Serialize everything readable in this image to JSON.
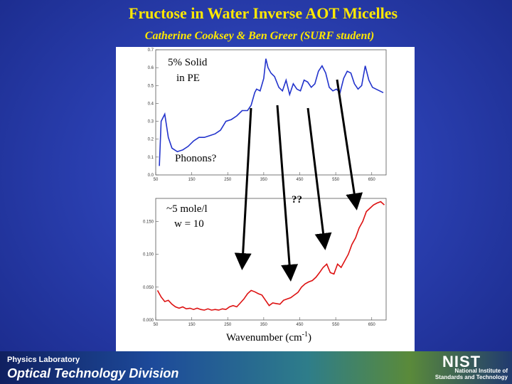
{
  "slide": {
    "title": "Fructose in Water Inverse AOT Micelles",
    "subtitle": "Catherine Cooksey & Ben Greer (SURF student)"
  },
  "footer": {
    "lab_name": "Physics Laboratory",
    "division": "Optical Technology Division",
    "logo": "NIST",
    "org_line1": "National Institute of",
    "org_line2": "Standards and Technology"
  },
  "annotations": {
    "top_label_1": "5% Solid",
    "top_label_2": "in PE",
    "phonons": "Phonons?",
    "bottom_label_1": "~5 mole/l",
    "bottom_label_2": "w = 10",
    "question": "??",
    "xlabel_main": "Wavenumber (cm",
    "xlabel_sup": "-1",
    "xlabel_end": ")"
  },
  "colors": {
    "title": "#ffe800",
    "top_series": "#2233cc",
    "bottom_series": "#dd1111",
    "arrow": "#000000"
  },
  "chart_data": [
    {
      "type": "line",
      "title": "",
      "xlabel": "",
      "ylabel": "",
      "xlim": [
        50,
        690
      ],
      "ylim": [
        0.0,
        0.7
      ],
      "xticks": [
        "50",
        "150",
        "250",
        "350",
        "450",
        "550",
        "650"
      ],
      "yticks": [
        "0.0",
        "0.1",
        "0.2",
        "0.3",
        "0.4",
        "0.5",
        "0.6",
        "0.7"
      ],
      "series": [
        {
          "x": [
            60,
            65,
            75,
            85,
            95,
            110,
            125,
            140,
            155,
            170,
            185,
            200,
            215,
            230,
            245,
            260,
            275,
            290,
            305,
            315,
            325,
            330,
            340,
            350,
            356,
            362,
            370,
            380,
            392,
            402,
            412,
            422,
            432,
            442,
            452,
            462,
            472,
            482,
            492,
            502,
            512,
            522,
            532,
            542,
            552,
            562,
            572,
            582,
            592,
            602,
            612,
            622,
            632,
            642,
            652,
            662,
            672,
            682
          ],
          "y": [
            0.05,
            0.3,
            0.34,
            0.21,
            0.15,
            0.13,
            0.14,
            0.16,
            0.19,
            0.21,
            0.21,
            0.22,
            0.23,
            0.25,
            0.3,
            0.31,
            0.33,
            0.36,
            0.36,
            0.39,
            0.46,
            0.48,
            0.47,
            0.54,
            0.65,
            0.6,
            0.57,
            0.55,
            0.49,
            0.47,
            0.53,
            0.45,
            0.51,
            0.48,
            0.47,
            0.53,
            0.52,
            0.49,
            0.51,
            0.58,
            0.61,
            0.57,
            0.49,
            0.47,
            0.48,
            0.46,
            0.54,
            0.58,
            0.57,
            0.51,
            0.48,
            0.5,
            0.61,
            0.53,
            0.49,
            0.48,
            0.47,
            0.46
          ]
        }
      ]
    },
    {
      "type": "line",
      "title": "",
      "xlabel": "Wavenumber (cm-1)",
      "ylabel": "",
      "xlim": [
        50,
        690
      ],
      "ylim": [
        0.0,
        0.185
      ],
      "xticks": [
        "50",
        "150",
        "250",
        "350",
        "450",
        "550",
        "650"
      ],
      "yticks": [
        "0.000",
        "0.050",
        "0.100",
        "0.150"
      ],
      "series": [
        {
          "x": [
            55,
            65,
            75,
            85,
            95,
            105,
            115,
            125,
            135,
            145,
            155,
            165,
            175,
            185,
            195,
            205,
            215,
            225,
            235,
            245,
            255,
            265,
            275,
            285,
            295,
            305,
            315,
            325,
            335,
            345,
            355,
            365,
            375,
            385,
            395,
            405,
            415,
            425,
            435,
            445,
            455,
            465,
            475,
            485,
            495,
            505,
            515,
            525,
            535,
            545,
            555,
            565,
            575,
            585,
            595,
            605,
            615,
            625,
            635,
            645,
            655,
            665,
            675,
            685
          ],
          "y": [
            0.045,
            0.035,
            0.028,
            0.03,
            0.024,
            0.02,
            0.018,
            0.02,
            0.017,
            0.018,
            0.016,
            0.018,
            0.016,
            0.015,
            0.017,
            0.015,
            0.016,
            0.015,
            0.017,
            0.016,
            0.02,
            0.022,
            0.02,
            0.026,
            0.032,
            0.04,
            0.045,
            0.043,
            0.04,
            0.038,
            0.03,
            0.022,
            0.026,
            0.025,
            0.024,
            0.03,
            0.032,
            0.034,
            0.038,
            0.042,
            0.05,
            0.055,
            0.058,
            0.06,
            0.065,
            0.072,
            0.08,
            0.085,
            0.072,
            0.07,
            0.085,
            0.08,
            0.09,
            0.1,
            0.115,
            0.125,
            0.14,
            0.15,
            0.165,
            0.17,
            0.175,
            0.178,
            0.18,
            0.175
          ]
        }
      ]
    }
  ]
}
